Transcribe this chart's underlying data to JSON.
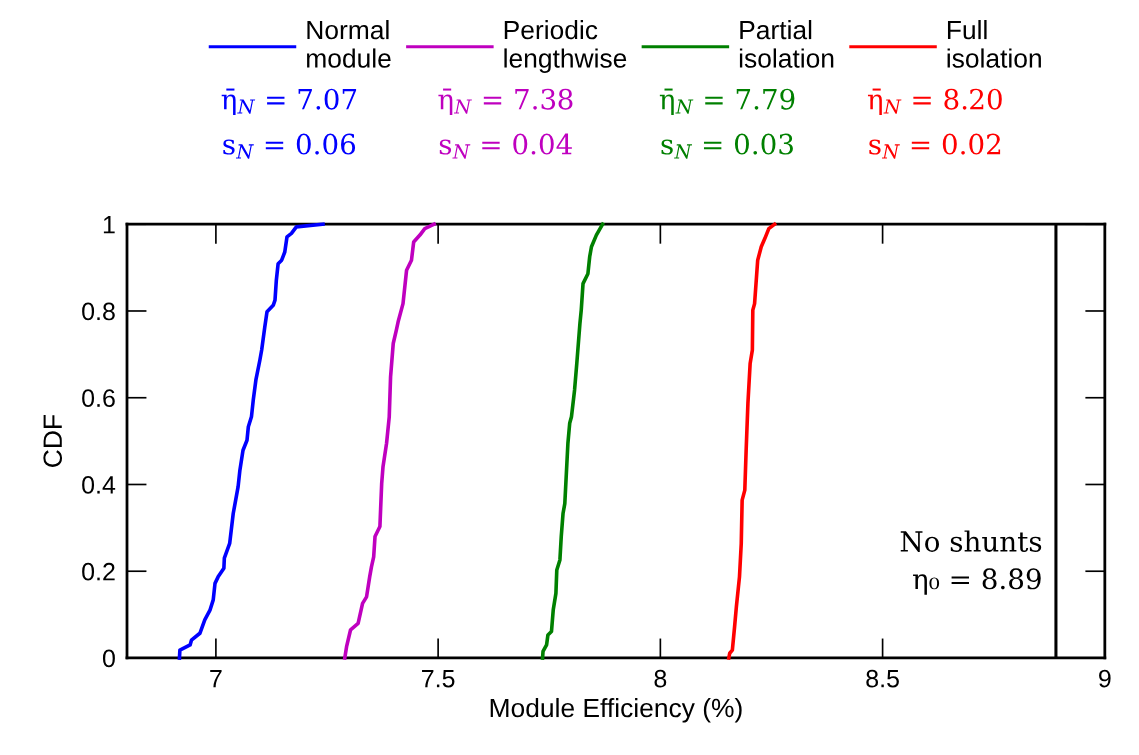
{
  "chart_data": {
    "type": "line",
    "xlabel": "Module Efficiency (%)",
    "ylabel": "CDF",
    "xlim": [
      6.8,
      9
    ],
    "ylim": [
      0,
      1
    ],
    "xticks": [
      7,
      7.5,
      8,
      8.5,
      9
    ],
    "yticks": [
      0,
      0.2,
      0.4,
      0.6,
      0.8,
      1
    ],
    "grid": false,
    "legend": "top",
    "line_style": "solid",
    "marker": "none",
    "series": [
      {
        "name": "Normal\nmodule",
        "color": "#0000ff",
        "x": [
          6.918,
          6.919,
          6.942,
          6.945,
          6.964,
          6.975,
          6.987,
          6.994,
          6.998,
          7.005,
          7.018,
          7.019,
          7.031,
          7.039,
          7.05,
          7.054,
          7.061,
          7.07,
          7.073,
          7.08,
          7.084,
          7.09,
          7.099,
          7.103,
          7.11,
          7.115,
          7.129,
          7.133,
          7.136,
          7.14,
          7.148,
          7.155,
          7.16,
          7.17,
          7.181,
          7.241
        ],
        "values": [
          0,
          0.018,
          0.03,
          0.041,
          0.057,
          0.088,
          0.111,
          0.134,
          0.172,
          0.187,
          0.207,
          0.23,
          0.264,
          0.333,
          0.395,
          0.433,
          0.479,
          0.502,
          0.533,
          0.556,
          0.594,
          0.641,
          0.687,
          0.71,
          0.763,
          0.798,
          0.813,
          0.825,
          0.871,
          0.909,
          0.917,
          0.936,
          0.971,
          0.979,
          0.994,
          1
        ]
      },
      {
        "name": "Periodic\nlengthwise",
        "color": "#bf00bf",
        "x": [
          7.29,
          7.294,
          7.303,
          7.32,
          7.33,
          7.339,
          7.346,
          7.35,
          7.355,
          7.358,
          7.369,
          7.373,
          7.376,
          7.384,
          7.39,
          7.393,
          7.399,
          7.406,
          7.41,
          7.421,
          7.429,
          7.44,
          7.445,
          7.459,
          7.47,
          7.491
        ],
        "values": [
          0,
          0.026,
          0.065,
          0.08,
          0.126,
          0.141,
          0.187,
          0.21,
          0.233,
          0.28,
          0.303,
          0.402,
          0.441,
          0.495,
          0.556,
          0.648,
          0.725,
          0.756,
          0.775,
          0.817,
          0.894,
          0.917,
          0.959,
          0.975,
          0.99,
          1
        ]
      },
      {
        "name": "Partial\nisolation",
        "color": "#008000",
        "x": [
          7.735,
          7.736,
          7.744,
          7.747,
          7.755,
          7.759,
          7.765,
          7.767,
          7.774,
          7.777,
          7.781,
          7.785,
          7.792,
          7.796,
          7.8,
          7.807,
          7.812,
          7.819,
          7.822,
          7.826,
          7.837,
          7.841,
          7.845,
          7.856,
          7.87
        ],
        "values": [
          0,
          0.015,
          0.03,
          0.053,
          0.061,
          0.111,
          0.149,
          0.203,
          0.226,
          0.28,
          0.333,
          0.356,
          0.495,
          0.541,
          0.556,
          0.618,
          0.679,
          0.771,
          0.802,
          0.863,
          0.886,
          0.925,
          0.948,
          0.975,
          1
        ]
      },
      {
        "name": "Full\nisolation",
        "color": "#ff0000",
        "x": [
          8.154,
          8.156,
          8.162,
          8.167,
          8.171,
          8.178,
          8.182,
          8.184,
          8.19,
          8.193,
          8.197,
          8.202,
          8.207,
          8.208,
          8.212,
          8.219,
          8.227,
          8.235,
          8.244,
          8.257
        ],
        "values": [
          0,
          0.011,
          0.018,
          0.072,
          0.118,
          0.187,
          0.264,
          0.364,
          0.387,
          0.479,
          0.587,
          0.679,
          0.71,
          0.802,
          0.817,
          0.917,
          0.948,
          0.967,
          0.99,
          1
        ]
      }
    ],
    "ref_lines": [
      {
        "axis": "x",
        "value": 8.89,
        "label": "No shunts\nη₀ = 8.89",
        "color": "#000000"
      }
    ],
    "annotations": [
      "η̄$_{N}$ = 7.07",
      "s$_{N}$ = 0.06",
      "η̄$_{N}$ = 7.38",
      "s$_{N}$ = 0.04",
      "η̄$_{N}$ = 7.79",
      "s$_{N}$ = 0.03",
      "η̄$_{N}$ = 8.20",
      "s$_{N}$ = 0.02"
    ]
  }
}
